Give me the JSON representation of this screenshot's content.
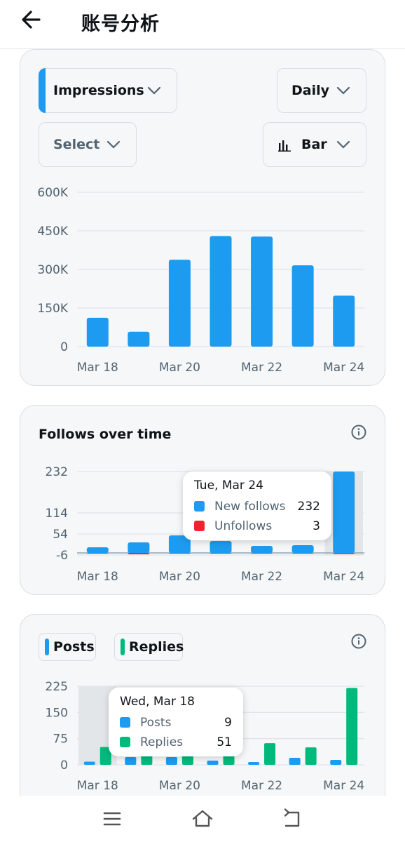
{
  "header": {
    "title": "账号分析"
  },
  "card1": {
    "metric_dropdown": "Impressions",
    "period_dropdown": "Daily",
    "select_dropdown": "Select",
    "chart_type_dropdown": "Bar",
    "colors": {
      "bar": "#1d9bf0"
    }
  },
  "card2": {
    "title": "Follows over time",
    "tooltip": {
      "date": "Tue, Mar 24",
      "rows": [
        {
          "label": "New follows",
          "value": "232",
          "color": "#1d9bf0"
        },
        {
          "label": "Unfollows",
          "value": "3",
          "color": "#f4212e"
        }
      ]
    }
  },
  "card3": {
    "chips": [
      {
        "label": "Posts",
        "color": "#1d9bf0"
      },
      {
        "label": "Replies",
        "color": "#00ba7c"
      }
    ],
    "tooltip": {
      "date": "Wed, Mar 18",
      "rows": [
        {
          "label": "Posts",
          "value": "9",
          "color": "#1d9bf0"
        },
        {
          "label": "Replies",
          "value": "51",
          "color": "#00ba7c"
        }
      ]
    }
  },
  "chart_data": [
    {
      "type": "bar",
      "title": "",
      "x": [
        "Mar 18",
        "Mar 19",
        "Mar 20",
        "Mar 21",
        "Mar 22",
        "Mar 23",
        "Mar 24"
      ],
      "xtick_labels": [
        "Mar 18",
        "Mar 20",
        "Mar 22",
        "Mar 24"
      ],
      "series": [
        {
          "values": [
            112000,
            58000,
            338000,
            430000,
            428000,
            316000,
            198000
          ]
        }
      ],
      "ylim": [
        0,
        600000
      ],
      "yticks": [
        0,
        150000,
        300000,
        450000,
        600000
      ],
      "ytick_labels": [
        "0",
        "150K",
        "300K",
        "450K",
        "600K"
      ],
      "grid": true
    },
    {
      "type": "bar",
      "title": "Follows over time",
      "x": [
        "Mar 18",
        "Mar 19",
        "Mar 20",
        "Mar 21",
        "Mar 22",
        "Mar 23",
        "Mar 24"
      ],
      "xtick_labels": [
        "Mar 18",
        "Mar 20",
        "Mar 22",
        "Mar 24"
      ],
      "series": [
        {
          "name": "New follows",
          "values": [
            16,
            30,
            50,
            34,
            20,
            22,
            232
          ]
        },
        {
          "name": "Unfollows",
          "values": [
            -2,
            -4,
            -2,
            -2,
            -2,
            -2,
            -3
          ]
        }
      ],
      "ylim": [
        -6,
        232
      ],
      "yticks": [
        -6,
        54,
        114,
        232
      ],
      "ytick_labels": [
        "-6",
        "54",
        "114",
        "232"
      ],
      "highlight": "Mar 24"
    },
    {
      "type": "bar",
      "title": "",
      "x": [
        "Mar 18",
        "Mar 19",
        "Mar 20",
        "Mar 21",
        "Mar 22",
        "Mar 23",
        "Mar 24"
      ],
      "xtick_labels": [
        "Mar 18",
        "Mar 20",
        "Mar 22",
        "Mar 24"
      ],
      "series": [
        {
          "name": "Posts",
          "values": [
            9,
            22,
            22,
            12,
            8,
            20,
            14
          ]
        },
        {
          "name": "Replies",
          "values": [
            51,
            40,
            45,
            50,
            62,
            50,
            220
          ]
        }
      ],
      "ylim": [
        0,
        225
      ],
      "yticks": [
        0,
        75,
        150,
        225
      ],
      "ytick_labels": [
        "0",
        "75",
        "150",
        "225"
      ],
      "highlight": "Mar 18"
    }
  ]
}
